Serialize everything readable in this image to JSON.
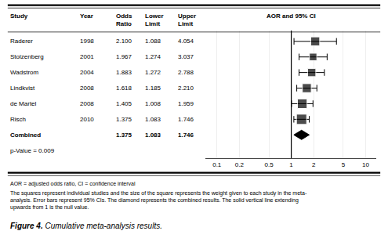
{
  "chart_data": {
    "type": "forest",
    "title": "AOR and 95% CI",
    "column_headers": [
      "Study",
      "Year",
      "Odds\nRatio",
      "Lower\nLimit",
      "Upper\nLimit"
    ],
    "categories": [
      "Raderer",
      "Stolzenberg",
      "Wadstrom",
      "Lindkvist",
      "de Martel",
      "Risch"
    ],
    "years": [
      "1998",
      "2001",
      "2004",
      "2008",
      "2008",
      "2010"
    ],
    "values": [
      2.1,
      1.967,
      1.883,
      1.618,
      1.405,
      1.375
    ],
    "value_labels": [
      "2.100",
      "1.967",
      "1.883",
      "1.618",
      "1.405",
      "1.375"
    ],
    "lower": [
      1.088,
      1.274,
      1.272,
      1.185,
      1.008,
      1.083
    ],
    "lower_labels": [
      "1.088",
      "1.274",
      "1.272",
      "1.185",
      "1.008",
      "1.083"
    ],
    "upper": [
      4.054,
      3.037,
      2.788,
      2.21,
      1.959,
      1.746
    ],
    "upper_labels": [
      "4.054",
      "3.037",
      "2.788",
      "2.210",
      "1.959",
      "1.746"
    ],
    "sizes": [
      130,
      90,
      110,
      130,
      150,
      170
    ],
    "combined": {
      "label": "Combined",
      "value": 1.375,
      "value_label": "1.375",
      "lower": 1.083,
      "lower_label": "1.083",
      "upper": 1.746,
      "upper_label": "1.746"
    },
    "reference": 1,
    "p_value": "p-Value = 0.009",
    "notes": [
      "AOR = adjusted odds ratio, CI = confidence interval",
      "The squares represent individual studies and the size of the square represents the weight given to each study in the meta-\nanalysis. Error bars represent 95% CIs. The diamond represents the combined results. The solid vertical line extending\nupwards from 1 is the null value."
    ],
    "caption_bold": "Figure 4.",
    "caption": " Cumulative meta-analysis results.",
    "color": "#000000",
    "log": "x",
    "xlim": [
      0.07,
      14.0
    ],
    "xticks": [
      0.1,
      0.2,
      0.5,
      1,
      2,
      5,
      10
    ],
    "grid": true,
    "tick_labels": "x"
  }
}
